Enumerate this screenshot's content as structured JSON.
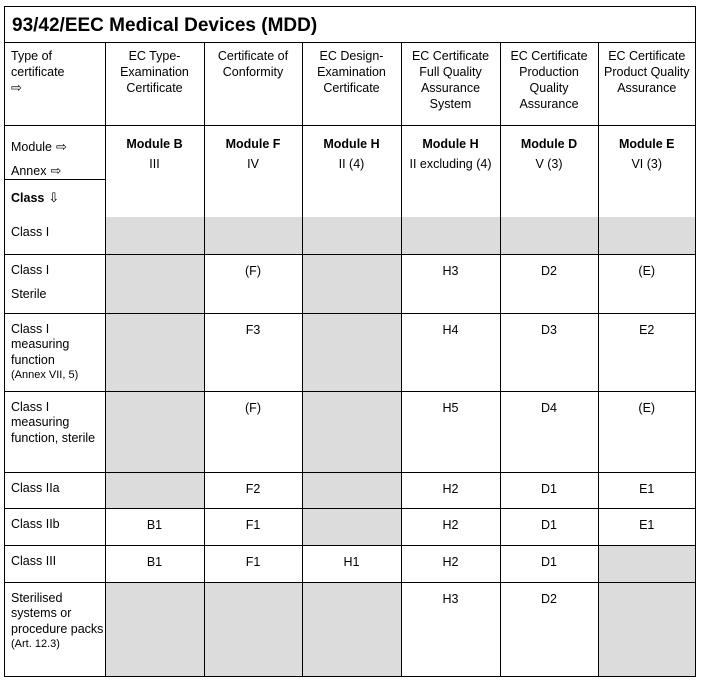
{
  "title": "93/42/EEC Medical Devices (MDD)",
  "header": {
    "type_label": "Type of certificate",
    "module_label": "Module",
    "annex_label": "Annex",
    "class_label": "Class",
    "right_arrow": "⇨",
    "down_arrow": "⇩",
    "columns": [
      {
        "type": "EC Type-Examination Certificate",
        "module": "Module B",
        "annex": "III"
      },
      {
        "type": "Certificate of Conformity",
        "module": "Module F",
        "annex": "IV"
      },
      {
        "type": "EC Design-Examination Certificate",
        "module": "Module H",
        "annex": "II (4)"
      },
      {
        "type": "EC Certificate Full Quality Assurance System",
        "module": "Module H",
        "annex": "II excluding (4)"
      },
      {
        "type": "EC Certificate Production Quality Assurance",
        "module": "Module D",
        "annex": "V (3)"
      },
      {
        "type": "EC Certificate Product Quality Assurance",
        "module": "Module E",
        "annex": "VI (3)"
      }
    ]
  },
  "rows": [
    {
      "label": "Class I",
      "note": "",
      "cells": [
        "",
        "",
        "",
        "",
        "",
        ""
      ]
    },
    {
      "label": "Class I",
      "label2": "Sterile",
      "note": "",
      "cells": [
        "",
        "(F)",
        "",
        "H3",
        "D2",
        "(E)"
      ]
    },
    {
      "label": "Class I measuring function",
      "note": "(Annex VII, 5)",
      "cells": [
        "",
        "F3",
        "",
        "H4",
        "D3",
        "E2"
      ]
    },
    {
      "label": "Class I measuring function, sterile",
      "note": "",
      "cells": [
        "",
        "(F)",
        "",
        "H5",
        "D4",
        "(E)"
      ]
    },
    {
      "label": "Class IIa",
      "note": "",
      "cells": [
        "",
        "F2",
        "",
        "H2",
        "D1",
        "E1"
      ]
    },
    {
      "label": "Class IIb",
      "note": "",
      "cells": [
        "B1",
        "F1",
        "",
        "H2",
        "D1",
        "E1"
      ]
    },
    {
      "label": "Class III",
      "note": "",
      "cells": [
        "B1",
        "F1",
        "H1",
        "H2",
        "D1",
        ""
      ]
    },
    {
      "label": "Sterilised systems or procedure packs",
      "note": "(Art. 12.3)",
      "cells": [
        "",
        "",
        "",
        "H3",
        "D2",
        ""
      ]
    }
  ],
  "colors": {
    "shade": "#dcdcdc",
    "border": "#000000"
  }
}
